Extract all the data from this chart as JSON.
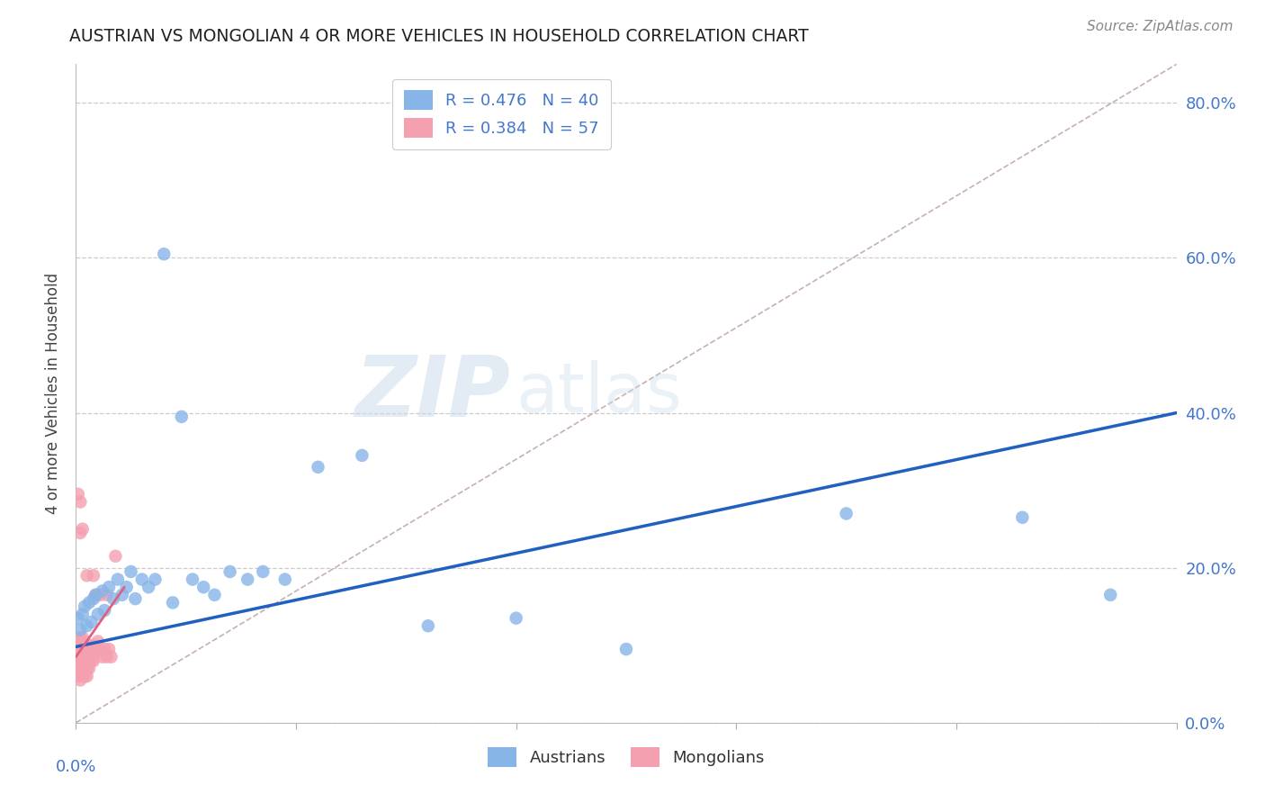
{
  "title": "AUSTRIAN VS MONGOLIAN 4 OR MORE VEHICLES IN HOUSEHOLD CORRELATION CHART",
  "source": "Source: ZipAtlas.com",
  "ylabel": "4 or more Vehicles in Household",
  "xlim": [
    0.0,
    0.5
  ],
  "ylim": [
    0.0,
    0.85
  ],
  "watermark_line1": "ZIP",
  "watermark_line2": "atlas",
  "legend_austrians": "R = 0.476   N = 40",
  "legend_mongolians": "R = 0.384   N = 57",
  "austrians_color": "#87b5e8",
  "mongolians_color": "#f4a0b0",
  "trendline_austrians_color": "#2060c0",
  "trendline_mongolians_color": "#e06080",
  "diagonal_color": "#c8b0b0",
  "background_color": "#ffffff",
  "grid_color": "#cccccc",
  "ytick_vals": [
    0.0,
    0.2,
    0.4,
    0.6,
    0.8
  ],
  "ytick_labels": [
    "0.0%",
    "20.0%",
    "40.0%",
    "60.0%",
    "80.0%"
  ],
  "austrians_x": [
    0.001,
    0.002,
    0.003,
    0.004,
    0.005,
    0.006,
    0.007,
    0.008,
    0.009,
    0.01,
    0.012,
    0.013,
    0.015,
    0.017,
    0.019,
    0.021,
    0.023,
    0.025,
    0.027,
    0.03,
    0.033,
    0.036,
    0.04,
    0.044,
    0.048,
    0.053,
    0.058,
    0.063,
    0.07,
    0.078,
    0.085,
    0.095,
    0.11,
    0.13,
    0.16,
    0.2,
    0.25,
    0.35,
    0.43,
    0.47
  ],
  "austrians_y": [
    0.135,
    0.12,
    0.14,
    0.15,
    0.125,
    0.155,
    0.13,
    0.16,
    0.165,
    0.14,
    0.17,
    0.145,
    0.175,
    0.16,
    0.185,
    0.165,
    0.175,
    0.195,
    0.16,
    0.185,
    0.175,
    0.185,
    0.605,
    0.155,
    0.395,
    0.185,
    0.175,
    0.165,
    0.195,
    0.185,
    0.195,
    0.185,
    0.33,
    0.345,
    0.125,
    0.135,
    0.095,
    0.27,
    0.265,
    0.165
  ],
  "mongolians_x": [
    0.0,
    0.0,
    0.001,
    0.001,
    0.001,
    0.001,
    0.001,
    0.002,
    0.002,
    0.002,
    0.002,
    0.002,
    0.002,
    0.002,
    0.003,
    0.003,
    0.003,
    0.003,
    0.003,
    0.003,
    0.004,
    0.004,
    0.004,
    0.004,
    0.004,
    0.005,
    0.005,
    0.005,
    0.005,
    0.006,
    0.006,
    0.006,
    0.006,
    0.007,
    0.007,
    0.008,
    0.008,
    0.008,
    0.009,
    0.01,
    0.01,
    0.011,
    0.012,
    0.013,
    0.014,
    0.015,
    0.016,
    0.018,
    0.001,
    0.002,
    0.002,
    0.003,
    0.005,
    0.008,
    0.009,
    0.011,
    0.014
  ],
  "mongolians_y": [
    0.075,
    0.085,
    0.06,
    0.07,
    0.08,
    0.09,
    0.1,
    0.055,
    0.065,
    0.075,
    0.085,
    0.095,
    0.105,
    0.11,
    0.06,
    0.07,
    0.08,
    0.09,
    0.1,
    0.11,
    0.06,
    0.07,
    0.08,
    0.09,
    0.1,
    0.06,
    0.07,
    0.08,
    0.09,
    0.07,
    0.08,
    0.09,
    0.1,
    0.08,
    0.09,
    0.08,
    0.09,
    0.1,
    0.09,
    0.095,
    0.105,
    0.095,
    0.085,
    0.095,
    0.085,
    0.095,
    0.085,
    0.215,
    0.295,
    0.285,
    0.245,
    0.25,
    0.19,
    0.19,
    0.165,
    0.165,
    0.165
  ]
}
